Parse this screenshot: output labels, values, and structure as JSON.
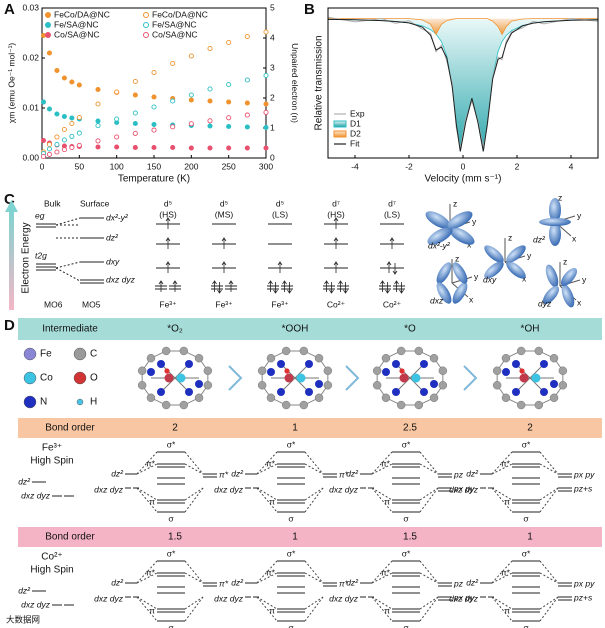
{
  "panel_labels": [
    "A",
    "B",
    "C",
    "D"
  ],
  "chart_data": [
    {
      "type": "scatter",
      "xlabel": "Temperature (K)",
      "ylabel": "χm (emu Oe⁻¹ mol⁻¹)",
      "y2label": "Unpaired electron (n)",
      "x": [
        2,
        10,
        20,
        30,
        40,
        50,
        75,
        100,
        125,
        150,
        175,
        200,
        225,
        250,
        275,
        300
      ],
      "xlim": [
        0,
        300
      ],
      "xticks": [
        0,
        50,
        100,
        150,
        200,
        250,
        300
      ],
      "ylim": [
        0,
        0.03
      ],
      "yticks": [
        {
          "value": 0,
          "label": "0.00"
        },
        0.01,
        0.02,
        0.03
      ],
      "y2lim": [
        0,
        5
      ],
      "y2ticks": [
        0,
        1,
        2,
        3,
        4,
        5
      ],
      "legend": "upper left",
      "series": [
        {
          "name": "FeCo/DA@NC",
          "color": "#f0922e",
          "marker": "filled",
          "values": [
            0.0245,
            0.021,
            0.0175,
            0.016,
            0.0152,
            0.0146,
            0.0137,
            0.0131,
            0.0126,
            0.0122,
            0.0119,
            0.0116,
            0.0114,
            0.0112,
            0.011,
            0.0108
          ]
        },
        {
          "name": "Fe/SA@NC",
          "color": "#2bbfc4",
          "marker": "filled",
          "values": [
            0.0112,
            0.0098,
            0.0088,
            0.0083,
            0.008,
            0.0078,
            0.0074,
            0.0071,
            0.0069,
            0.0067,
            0.0066,
            0.0065,
            0.0064,
            0.0063,
            0.0062,
            0.0061
          ]
        },
        {
          "name": "Co/SA@NC",
          "color": "#e8506e",
          "marker": "filled",
          "values": [
            0.0035,
            0.003,
            0.0026,
            0.0024,
            0.0023,
            0.0023,
            0.0022,
            0.0022,
            0.0021,
            0.0021,
            0.0021,
            0.002,
            0.002,
            0.002,
            0.002,
            0.002
          ]
        },
        {
          "name": "FeCo/DA@NC",
          "color": "#f0922e",
          "marker": "open",
          "axis": "y2",
          "values": [
            0.2,
            0.45,
            0.7,
            0.95,
            1.15,
            1.35,
            1.8,
            2.2,
            2.55,
            2.85,
            3.15,
            3.4,
            3.65,
            3.85,
            4.05,
            4.2
          ]
        },
        {
          "name": "Fe/SA@NC",
          "color": "#2bbfc4",
          "marker": "open",
          "axis": "y2",
          "values": [
            0.15,
            0.3,
            0.45,
            0.6,
            0.72,
            0.83,
            1.08,
            1.3,
            1.5,
            1.7,
            1.9,
            2.1,
            2.3,
            2.45,
            2.6,
            2.75
          ]
        },
        {
          "name": "Co/SA@NC",
          "color": "#e8506e",
          "marker": "open",
          "axis": "y2",
          "values": [
            0.05,
            0.12,
            0.2,
            0.28,
            0.35,
            0.42,
            0.57,
            0.7,
            0.82,
            0.93,
            1.04,
            1.14,
            1.24,
            1.34,
            1.43,
            1.52
          ]
        }
      ]
    },
    {
      "type": "line",
      "xlabel": "Velocity (mm s⁻¹)",
      "ylabel": "Relative transmission",
      "x": [
        -5,
        -4,
        -3,
        -2.5,
        -2,
        -1.5,
        -1.2,
        -1,
        -0.8,
        -0.6,
        -0.4,
        -0.25,
        -0.1,
        0.1,
        0.33,
        0.55,
        0.75,
        0.9,
        1.1,
        1.3,
        1.45,
        1.6,
        1.8,
        2.2,
        2.6,
        3,
        4,
        5
      ],
      "xlim": [
        -5,
        5
      ],
      "xticks": [
        -4,
        -2,
        0,
        2,
        4
      ],
      "ylim": [
        -0.05,
        1.08
      ],
      "legend": "lower left",
      "series": [
        {
          "name": "Exp",
          "color": "#b0b0b0",
          "style": "line",
          "values": [
            1.01,
            0.975,
            1.0,
            0.965,
            0.985,
            0.92,
            0.89,
            0.75,
            0.8,
            0.68,
            0.51,
            0.18,
            0.02,
            0.24,
            0.38,
            0.23,
            0.03,
            0.19,
            0.56,
            0.71,
            0.69,
            0.83,
            0.9,
            0.93,
            0.98,
            0.96,
            1.0,
            0.98
          ]
        },
        {
          "name": "D1",
          "color": "#2bbfc4",
          "style": "area",
          "values": [
            0.994,
            0.991,
            0.985,
            0.978,
            0.968,
            0.945,
            0.917,
            0.884,
            0.828,
            0.719,
            0.492,
            0.205,
            0.0,
            0.219,
            0.4,
            0.219,
            0.0,
            0.205,
            0.565,
            0.754,
            0.828,
            0.873,
            0.91,
            0.948,
            0.966,
            0.976,
            0.988,
            0.992
          ]
        },
        {
          "name": "D2",
          "color": "#f0922e",
          "style": "area",
          "values": [
            1,
            1,
            1,
            1,
            1,
            0.99,
            0.957,
            0.88,
            0.957,
            0.985,
            0.995,
            1,
            1,
            1,
            1,
            1,
            1,
            1,
            0.981,
            0.94,
            0.88,
            0.94,
            0.981,
            0.997,
            1,
            1,
            1,
            1
          ]
        },
        {
          "name": "Fit",
          "color": "#222222",
          "style": "line",
          "values": [
            0.994,
            0.991,
            0.985,
            0.978,
            0.968,
            0.935,
            0.874,
            0.764,
            0.785,
            0.704,
            0.487,
            0.205,
            0.0,
            0.219,
            0.4,
            0.219,
            0.0,
            0.205,
            0.546,
            0.694,
            0.708,
            0.813,
            0.891,
            0.945,
            0.966,
            0.976,
            0.988,
            0.992
          ]
        }
      ]
    }
  ],
  "panel_c": {
    "ylabel": "Electron Energy",
    "bulk": "Bulk",
    "surface": "Surface",
    "bulk_levels": [
      "eg",
      "t2g"
    ],
    "orbitals": [
      "dx²-y²",
      "dz²",
      "dxy",
      "dxz dyz"
    ],
    "geometry": [
      "MO6",
      "MO5"
    ],
    "columns": [
      {
        "config": "d⁵",
        "spin": "(HS)",
        "ion": "Fe³⁺"
      },
      {
        "config": "d⁵",
        "spin": "(MS)",
        "ion": "Fe³⁺"
      },
      {
        "config": "d⁵",
        "spin": "(LS)",
        "ion": "Fe³⁺"
      },
      {
        "config": "d⁷",
        "spin": "(HS)",
        "ion": "Co²⁺"
      },
      {
        "config": "d⁷",
        "spin": "(LS)",
        "ion": "Co²⁺"
      }
    ],
    "orbital_images": [
      "dx²-y²",
      "dz²",
      "dxy",
      "dxz",
      "dyz"
    ],
    "axes": [
      "x",
      "y",
      "z"
    ]
  },
  "panel_d": {
    "header": "Intermediate",
    "intermediates": [
      "*O₂",
      "*OOH",
      "*O",
      "*OH"
    ],
    "legend": [
      "Fe",
      "C",
      "Co",
      "O",
      "N",
      "H"
    ],
    "bond_order_label": "Bond order",
    "d_labels": [
      "dz²",
      "dxz dyz"
    ],
    "fe": {
      "ion": "Fe³⁺",
      "spin": "High Spin",
      "bond_orders": [
        2,
        1,
        2.5,
        2
      ]
    },
    "co": {
      "ion": "Co²⁺",
      "spin": "High Spin",
      "bond_orders": [
        1.5,
        1,
        1.5,
        1
      ]
    },
    "cells": [
      {
        "mo": [
          "σ*",
          "π*",
          "π",
          "σ"
        ],
        "ligand": [
          "π*"
        ]
      },
      {
        "mo": [
          "σ*",
          "π*",
          "π",
          "σ"
        ],
        "ligand": [
          "π*"
        ]
      },
      {
        "mo": [
          "σ*",
          "π*",
          "π",
          "σ"
        ],
        "ligand": [
          "pz",
          "px py"
        ]
      },
      {
        "mo": [
          "σ*",
          "π*",
          "π",
          "σ"
        ],
        "ligand": [
          "px py",
          "pz+s"
        ]
      }
    ]
  },
  "watermark": "大数据网"
}
